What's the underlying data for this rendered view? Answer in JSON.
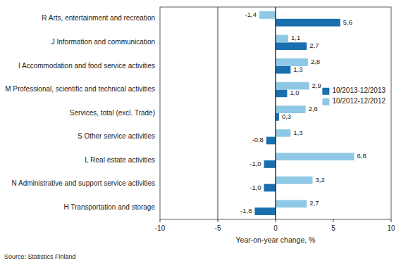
{
  "chart_data": {
    "type": "bar",
    "orientation": "horizontal",
    "categories": [
      "R Arts, entertainment and recreation",
      "J Information and communication",
      "I Accommodation and food service activities",
      "M Professional, scientific and technical activities",
      "Services, total (excl. Trade)",
      "S Other service activities",
      "L Real estate activities",
      "N Administrative and support service activities",
      "H Transportation and storage"
    ],
    "series": [
      {
        "name": "10/2013-12/2013",
        "color": "#1a6faf",
        "values": [
          5.6,
          2.7,
          1.3,
          1.0,
          0.3,
          -0.8,
          -1.0,
          -1.0,
          -1.8
        ],
        "value_labels": [
          "5,6",
          "2,7",
          "1,3",
          "1,0",
          "0,3",
          "-0,8",
          "-1,0",
          "-1,0",
          "-1,8"
        ]
      },
      {
        "name": "10/2012-12/2012",
        "color": "#8fc8e5",
        "values": [
          -1.4,
          1.1,
          2.8,
          2.9,
          2.6,
          1.3,
          6.8,
          3.2,
          2.7
        ],
        "value_labels": [
          "-1,4",
          "1,1",
          "2,8",
          "2,9",
          "2,6",
          "1,3",
          "6,8",
          "3,2",
          "2,7"
        ]
      }
    ],
    "xlabel": "Year-on-year change, %",
    "source": "Source: Statistics Finland",
    "xlim": [
      -10,
      10
    ],
    "xticks": [
      -10,
      -5,
      0,
      5,
      10
    ],
    "reference_lines": [
      0,
      -5
    ],
    "data_labels": true,
    "grid": false,
    "legend": "right"
  }
}
